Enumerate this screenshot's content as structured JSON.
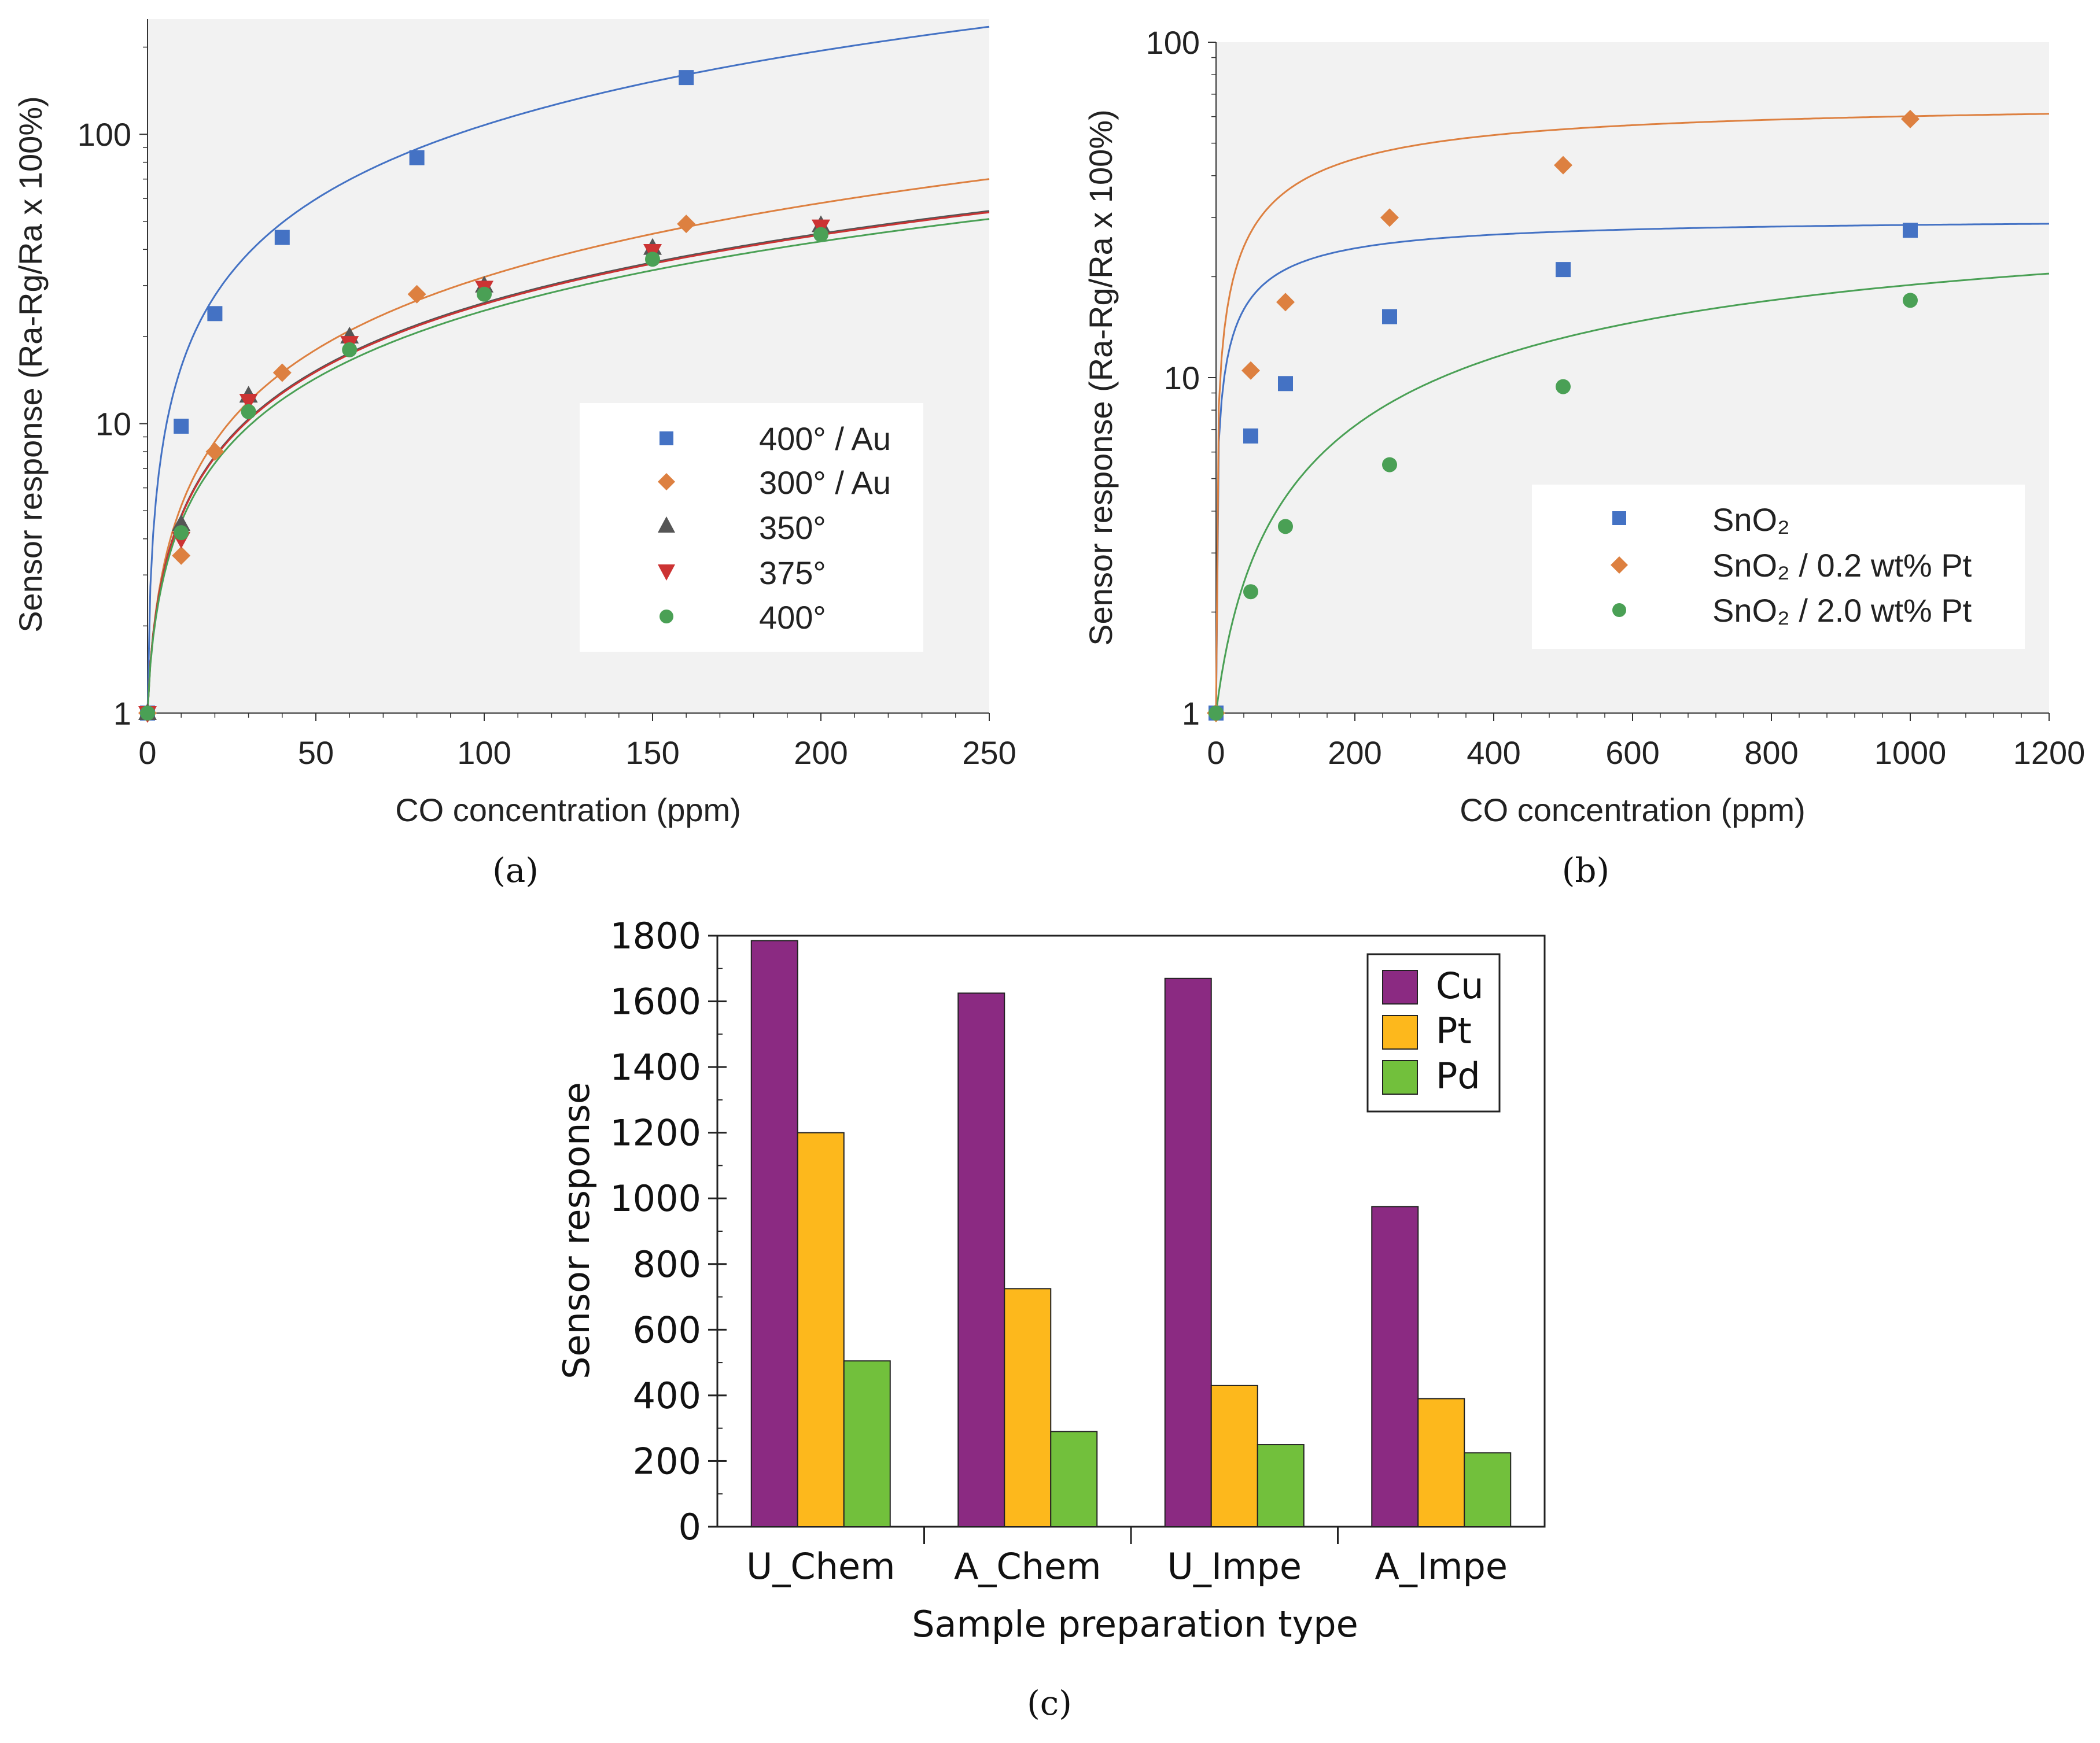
{
  "panel_labels": {
    "a": "(a)",
    "b": "(b)",
    "c": "(c)"
  },
  "colors": {
    "plot_bg": "#f2f2f2",
    "blue": "#4472c4",
    "orange": "#dd8040",
    "gray": "#555555",
    "red": "#cc3333",
    "green": "#4aa055",
    "purple": "#8b2a82",
    "gold": "#fdb81c",
    "lime": "#72c03c"
  },
  "chart_data": [
    {
      "id": "a",
      "type": "scatter",
      "yscale": "log",
      "title": "",
      "xlabel": "CO concentration (ppm)",
      "ylabel": "Sensor response (Ra-Rg/Ra x 100%)",
      "xlim": [
        0,
        250
      ],
      "ylim": [
        1,
        250
      ],
      "xticks": [
        0,
        50,
        100,
        150,
        200,
        250
      ],
      "yticks": [
        1,
        10,
        100
      ],
      "legend_position": "right-center",
      "series": [
        {
          "name": "400° / Au",
          "marker": "square",
          "color": "#4472c4",
          "fit": {
            "a": 2.03,
            "b": 0.86
          },
          "points": [
            [
              0,
              1
            ],
            [
              10,
              9.8
            ],
            [
              20,
              24
            ],
            [
              40,
              44
            ],
            [
              80,
              83
            ],
            [
              160,
              157
            ]
          ]
        },
        {
          "name": "300° / Au",
          "marker": "diamond",
          "color": "#dd8040",
          "fit": {
            "a": 0.566,
            "b": 0.87
          },
          "points": [
            [
              0,
              1
            ],
            [
              10,
              3.5
            ],
            [
              20,
              8
            ],
            [
              40,
              15
            ],
            [
              80,
              28
            ],
            [
              160,
              49
            ]
          ]
        },
        {
          "name": "350°",
          "marker": "triangle-up",
          "color": "#555555",
          "fit": {
            "a": 0.576,
            "b": 0.82
          },
          "points": [
            [
              0,
              1
            ],
            [
              10,
              4.5
            ],
            [
              30,
              12.5
            ],
            [
              60,
              20
            ],
            [
              100,
              30
            ],
            [
              150,
              40.5
            ],
            [
              200,
              48.5
            ]
          ]
        },
        {
          "name": "375°",
          "marker": "triangle-down",
          "color": "#cc3333",
          "fit": {
            "a": 0.57,
            "b": 0.82
          },
          "points": [
            [
              0,
              1
            ],
            [
              10,
              4
            ],
            [
              30,
              12
            ],
            [
              60,
              19
            ],
            [
              100,
              29.5
            ],
            [
              150,
              39.5
            ],
            [
              200,
              48
            ]
          ]
        },
        {
          "name": "400°",
          "marker": "circle",
          "color": "#4aa055",
          "fit": {
            "a": 0.54,
            "b": 0.82
          },
          "points": [
            [
              0,
              1
            ],
            [
              10,
              4.2
            ],
            [
              30,
              11
            ],
            [
              60,
              18
            ],
            [
              100,
              28
            ],
            [
              150,
              37
            ],
            [
              200,
              45
            ]
          ]
        }
      ]
    },
    {
      "id": "b",
      "type": "scatter",
      "yscale": "log",
      "title": "",
      "xlabel": "CO concentration (ppm)",
      "ylabel": "Sensor response (Ra-Rg/Ra x 100%)",
      "xlim": [
        0,
        1200
      ],
      "ylim": [
        1,
        100
      ],
      "xticks": [
        0,
        200,
        400,
        600,
        800,
        1000,
        1200
      ],
      "yticks": [
        1,
        10,
        100
      ],
      "legend_position": "right-center",
      "series": [
        {
          "name": "SnO₂",
          "marker": "square",
          "color": "#4472c4",
          "fit": {
            "k": 29,
            "c": 0.5,
            "K": 110
          },
          "points": [
            [
              0,
              1
            ],
            [
              50,
              6.7
            ],
            [
              100,
              9.6
            ],
            [
              250,
              15.2
            ],
            [
              500,
              21
            ],
            [
              1000,
              27.5
            ]
          ]
        },
        {
          "name": "SnO₂ / 0.2 wt% Pt",
          "marker": "diamond",
          "color": "#dd8040",
          "fit": {
            "k": 66,
            "c": 0.55,
            "K": 220
          },
          "points": [
            [
              0,
              1
            ],
            [
              50,
              10.5
            ],
            [
              100,
              16.8
            ],
            [
              250,
              30
            ],
            [
              500,
              43
            ],
            [
              1000,
              59
            ]
          ]
        },
        {
          "name": "SnO₂ / 2.0 wt% Pt",
          "marker": "circle",
          "color": "#4aa055",
          "fit": {
            "k": 34,
            "c": 1.0,
            "K": 900
          },
          "points": [
            [
              0,
              1
            ],
            [
              50,
              2.3
            ],
            [
              100,
              3.6
            ],
            [
              250,
              5.5
            ],
            [
              500,
              9.4
            ],
            [
              1000,
              17
            ]
          ]
        }
      ]
    },
    {
      "id": "c",
      "type": "bar",
      "title": "",
      "xlabel": "Sample preparation type",
      "ylabel": "Sensor response",
      "ylim": [
        0,
        1800
      ],
      "yticks": [
        0,
        200,
        400,
        600,
        800,
        1000,
        1200,
        1400,
        1600,
        1800
      ],
      "categories": [
        "U_Chem",
        "A_Chem",
        "U_Impe",
        "A_Impe"
      ],
      "legend_position": "top-right",
      "series": [
        {
          "name": "Cu",
          "color": "#8b2a82",
          "values": [
            1785,
            1625,
            1670,
            975
          ]
        },
        {
          "name": "Pt",
          "color": "#fdb81c",
          "values": [
            1200,
            725,
            430,
            390
          ]
        },
        {
          "name": "Pd",
          "color": "#72c03c",
          "values": [
            505,
            290,
            250,
            225
          ]
        }
      ]
    }
  ]
}
